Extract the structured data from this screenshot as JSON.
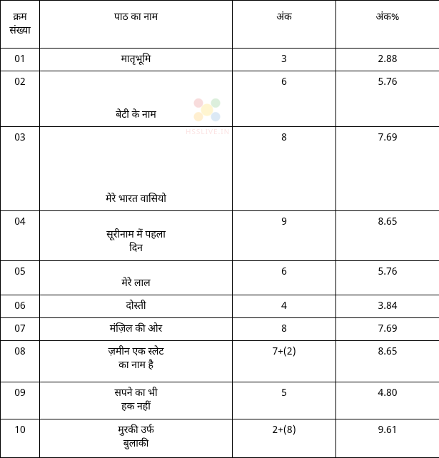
{
  "table": {
    "headers": {
      "sn": "क्रम संख्या",
      "name": "पाठ का नाम",
      "marks": "अंक",
      "pct": "अंक%"
    },
    "columns": {
      "sn_width": 55,
      "name_width": 270,
      "marks_width": 145,
      "pct_width": 145
    },
    "rows": [
      {
        "sn": "01",
        "name": "मातृभूमि",
        "marks": "3",
        "pct": "2.88",
        "height": 32
      },
      {
        "sn": "02",
        "name": "बेटी   के  नाम",
        "marks": "6",
        "pct": "5.76",
        "height": 78
      },
      {
        "sn": "03",
        "name": "मेरे   भारत  वासियो",
        "marks": "8",
        "pct": "7.69",
        "height": 118
      },
      {
        "sn": "04",
        "name": "सूरीनाम में पहला\nदिन",
        "marks": "9",
        "pct": "8.65",
        "height": 70
      },
      {
        "sn": "05",
        "name": "मेरे   लाल",
        "marks": "6",
        "pct": "5.76",
        "height": 48
      },
      {
        "sn": "06",
        "name": "दोस्ती",
        "marks": "4",
        "pct": "3.84",
        "height": 32
      },
      {
        "sn": "07",
        "name": "मंज़िल की ओर",
        "marks": "8",
        "pct": "7.69",
        "height": 32
      },
      {
        "sn": "08",
        "name": "ज़मीन एक स्लेट\nका नाम है",
        "marks": "7+(2)",
        "pct": "8.65",
        "height": 58
      },
      {
        "sn": "09",
        "name": "सपने   का  भी\nहक नहीं",
        "marks": "5",
        "pct": "4.80",
        "height": 52
      },
      {
        "sn": "10",
        "name": "मुरकी उर्फ\nबुलाकी",
        "marks": "2+(8)",
        "pct": "9.61",
        "height": 54
      }
    ],
    "border_color": "#000000",
    "font_size": 14,
    "background_color": "#ffffff"
  },
  "watermark": {
    "text": "HSSLIVE.IN",
    "color": "#e66666"
  }
}
